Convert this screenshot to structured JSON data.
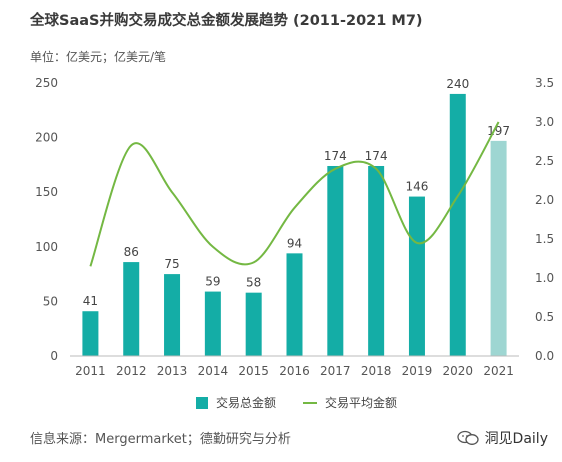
{
  "title": "全球SaaS并购交易成交总金额发展趋势 (2011-2021 M7)",
  "unit_label": "单位：亿美元；亿美元/笔",
  "source_text": "信息来源：Mergermarket；德勤研究与分析",
  "brand": {
    "name": "洞见Daily",
    "icon": "chat-bubble-icon"
  },
  "colors": {
    "bar": "#14ada6",
    "bar_last": "#9ed6d2",
    "line": "#74b843",
    "axis_text": "#555555",
    "grid": "#dddddd"
  },
  "chart_data": {
    "type": "bar",
    "categories": [
      "2011",
      "2012",
      "2013",
      "2014",
      "2015",
      "2016",
      "2017",
      "2018",
      "2019",
      "2020",
      "2021"
    ],
    "series": [
      {
        "name": "交易总金额",
        "type": "bar",
        "axis": "left",
        "values": [
          41,
          86,
          75,
          59,
          58,
          94,
          174,
          174,
          146,
          240,
          197
        ]
      },
      {
        "name": "交易平均金额",
        "type": "line",
        "axis": "right",
        "values": [
          1.15,
          2.7,
          2.1,
          1.4,
          1.2,
          1.9,
          2.4,
          2.4,
          1.45,
          2.05,
          3.0
        ]
      }
    ],
    "y_left": {
      "min": 0,
      "max": 250,
      "ticks": [
        "0",
        "50",
        "100",
        "150",
        "200",
        "250"
      ]
    },
    "y_right": {
      "min": 0,
      "max": 3.5,
      "ticks": [
        "0.0",
        "0.5",
        "1.0",
        "1.5",
        "2.0",
        "2.5",
        "3.0",
        "3.5"
      ]
    },
    "data_labels": [
      "41",
      "86",
      "75",
      "59",
      "58",
      "94",
      "174",
      "174",
      "146",
      "240",
      "197"
    ],
    "grid": false,
    "legend_position": "bottom"
  }
}
